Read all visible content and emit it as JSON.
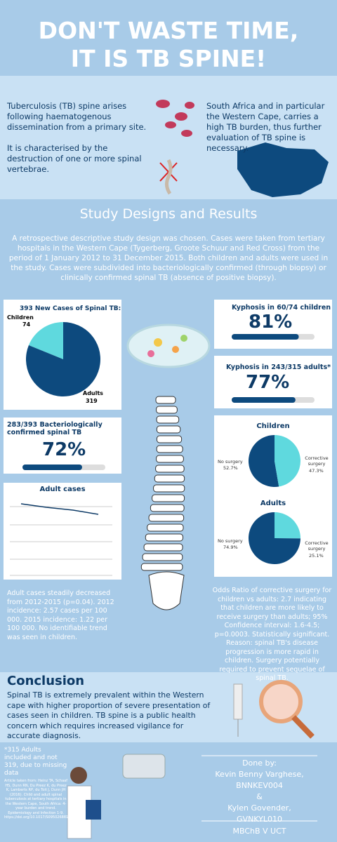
{
  "header": {
    "title_line1": "DON'T WASTE TIME,",
    "title_line2": "IT IS TB SPINE!"
  },
  "intro": {
    "left_p1": "Tuberculosis (TB) spine arises following haematogenous dissemination from a primary site.",
    "left_p2": "It is characterised by the destruction of one or more spinal vertebrae.",
    "right": "South Africa and in particular the Western Cape, carries a high TB burden, thus further evaluation of TB spine is necessary."
  },
  "study": {
    "title": "Study Designs and Results",
    "description": "A retrospective descriptive study design was chosen. Cases were taken from tertiary hospitals in the Western Cape (Tygerberg, Groote Schuur and Red Cross) from the period of 1 January 2012 to 31 December 2015. Both children and adults were used in the study. Cases were subdivided into bacteriologically confirmed (through biopsy) or clinically confirmed spinal TB (absence of positive biopsy)."
  },
  "cases_pie": {
    "title": "393 New Cases of Spinal TB:",
    "slices": [
      {
        "label": "Children",
        "value": 74,
        "color": "#5fd9de"
      },
      {
        "label": "Adults",
        "value": 319,
        "color": "#0d4a7e"
      }
    ]
  },
  "kyphosis_children": {
    "title": "Kyphosis in 60/74 children",
    "value": 81,
    "value_label": "81%"
  },
  "kyphosis_adults": {
    "title": "Kyphosis in 243/315 adults*",
    "value": 77,
    "value_label": "77%"
  },
  "bacteriological": {
    "title": "283/393 Bacteriologically confirmed spinal TB",
    "value": 72,
    "value_label": "72%"
  },
  "adult_cases": {
    "title": "Adult cases"
  },
  "surgery": {
    "charts": [
      {
        "title": "Children",
        "slices": [
          {
            "label": "No surgery",
            "value": 52.7,
            "value_label": "52.7%",
            "color": "#0d4a7e"
          },
          {
            "label": "Corrective surgery",
            "value": 47.3,
            "value_label": "47.3%",
            "color": "#5fd9de"
          }
        ]
      },
      {
        "title": "Adults",
        "slices": [
          {
            "label": "No surgery",
            "value": 74.9,
            "value_label": "74.9%",
            "color": "#0d4a7e"
          },
          {
            "label": "Corrective surgery",
            "value": 25.1,
            "value_label": "25.1%",
            "color": "#5fd9de"
          }
        ]
      }
    ]
  },
  "adult_trend": "Adult cases steadily decreased from 2012-2015 (p=0.04). 2012 incidence: 2.57 cases per 100 000. 2015 incidence: 1.22 per 100 000. No identifiable trend was seen in children.",
  "odds_ratio": "Odds Ratio of corrective surgery for children vs adults: 2.7 indicating that children are more likely to receive surgery than adults; 95% Confidence interval: 1.6-4.5; p=0.0003. Statistically significant. Reason: spinal TB's disease progression is more rapid in children. Surgery potentially required to prevent sequelae of spinal TB.",
  "conclusion": {
    "title": "Conclusion",
    "text": "Spinal TB is extremely prevalent within the Western cape with higher proportion of severe presentation of cases seen in children. TB spine is a public health concern which requires increased vigilance for accurate diagnosis."
  },
  "footnote": "*315 Adults included and not 319, due to missing data",
  "reference": "Article taken from: Heinz TA, Schaaf HS, Dunn RN, Du Preez K, du Preez K, Lamberts RP, du Toit J, Dunn JH (2016). Child and adult spinal tuberculosis at tertiary hospitals in the Western Cape, South Africa: 4-year burden and trend. Epidemiology and Infection 1-9. https://doi.org/10.1017/S0950268816003249",
  "credits": {
    "heading": "Done by:",
    "author1": "Kevin Benny Varghese,",
    "id1": "BNNKEV004",
    "and": "&",
    "author2": "Kylen Govender,",
    "id2": "GVNKYL010",
    "course": "MBChB V UCT"
  }
}
